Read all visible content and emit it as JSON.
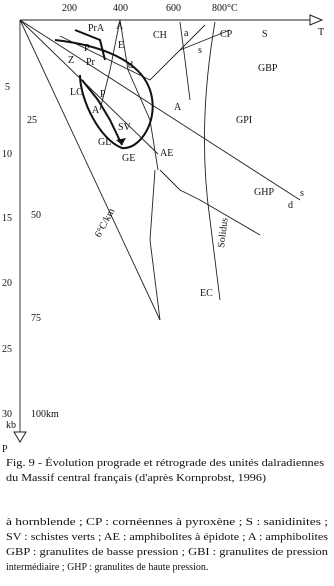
{
  "axes": {
    "temperature_ticks": [
      "200",
      "400",
      "600",
      "800°C"
    ],
    "temperature_label": "T",
    "pressure_ticks": [
      "5",
      "10",
      "15",
      "20",
      "25",
      "30"
    ],
    "pressure_unit": "kb",
    "pressure_label": "P",
    "depth_ticks": [
      "25",
      "50",
      "75",
      "100km"
    ]
  },
  "regions": [
    "PrA",
    "A",
    "CH",
    "a",
    "CP",
    "S",
    "E",
    "Z",
    "P",
    "Pr",
    "d",
    "s",
    "GBP",
    "LC",
    "P",
    "A",
    "SV",
    "A",
    "GPI",
    "GL",
    "GE",
    "AE",
    "GHP",
    "s",
    "d",
    "EC"
  ],
  "curves": {
    "geotherm": "6°C/km",
    "solidus": "Solidus"
  },
  "caption": [
    "Fig. 9 - Évolution prograde et rétrograde des unités dalradiennes",
    "du Massif central français (d'après Kornprobst, 1996)"
  ],
  "legend_lines": [
    "à hornblende ; CP : cornéennes à pyroxène ; S : sanidinites ;",
    "SV : schistes verts ; AE : amphibolites à épidote ; A : amphibolites",
    "GBP : granulites de basse pression ; GBI : granulites de pression",
    "intermédiaire ; GHP : granulites de haute pression."
  ]
}
